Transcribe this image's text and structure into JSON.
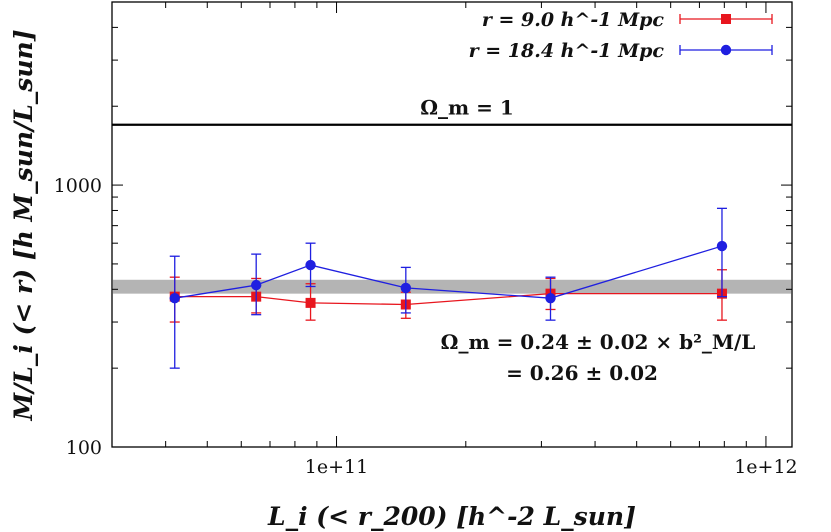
{
  "chart_data": {
    "type": "scatter",
    "x_scale": "log",
    "y_scale": "log",
    "xlim": [
      30000000000,
      1150000000000
    ],
    "ylim": [
      100,
      5000
    ],
    "xticks": [
      {
        "value": 100000000000,
        "label": "1e+11"
      },
      {
        "value": 1000000000000,
        "label": "1e+12"
      }
    ],
    "yticks": [
      {
        "value": 100,
        "label": "100"
      },
      {
        "value": 1000,
        "label": "1000"
      }
    ],
    "xlabel": "L_i (< r_200) [h^-2 L_sun]",
    "ylabel": "M/L_i (< r) [h M_sun/L_sun]",
    "legend_position": "top-right",
    "series": [
      {
        "name": "r = 9.0 h^-1 Mpc",
        "color": "#e8161e",
        "marker": "square",
        "points": [
          {
            "x": 42000000000,
            "y": 375,
            "ylo": 300,
            "yhi": 445
          },
          {
            "x": 65000000000,
            "y": 375,
            "ylo": 325,
            "yhi": 440
          },
          {
            "x": 87000000000,
            "y": 355,
            "ylo": 305,
            "yhi": 420
          },
          {
            "x": 145000000000,
            "y": 350,
            "ylo": 310,
            "yhi": 390
          },
          {
            "x": 315000000000,
            "y": 385,
            "ylo": 335,
            "yhi": 440
          },
          {
            "x": 790000000000,
            "y": 385,
            "ylo": 305,
            "yhi": 475
          }
        ]
      },
      {
        "name": "r = 18.4 h^-1 Mpc",
        "color": "#1f1fe0",
        "marker": "circle",
        "points": [
          {
            "x": 42000000000,
            "y": 370,
            "ylo": 200,
            "yhi": 535
          },
          {
            "x": 65000000000,
            "y": 415,
            "ylo": 320,
            "yhi": 545
          },
          {
            "x": 87000000000,
            "y": 495,
            "ylo": 410,
            "yhi": 600
          },
          {
            "x": 145000000000,
            "y": 405,
            "ylo": 325,
            "yhi": 485
          },
          {
            "x": 315000000000,
            "y": 370,
            "ylo": 305,
            "yhi": 445
          },
          {
            "x": 790000000000,
            "y": 585,
            "ylo": 375,
            "yhi": 815
          }
        ]
      }
    ],
    "reference_line": {
      "label": "Ω_m = 1",
      "y": 1700
    },
    "band": {
      "y_low": 385,
      "y_high": 435,
      "color": "#b4b4b4"
    },
    "annotation": [
      "Ω_m = 0.24 ± 0.02 × b²_M/L",
      "= 0.26 ± 0.02"
    ]
  }
}
